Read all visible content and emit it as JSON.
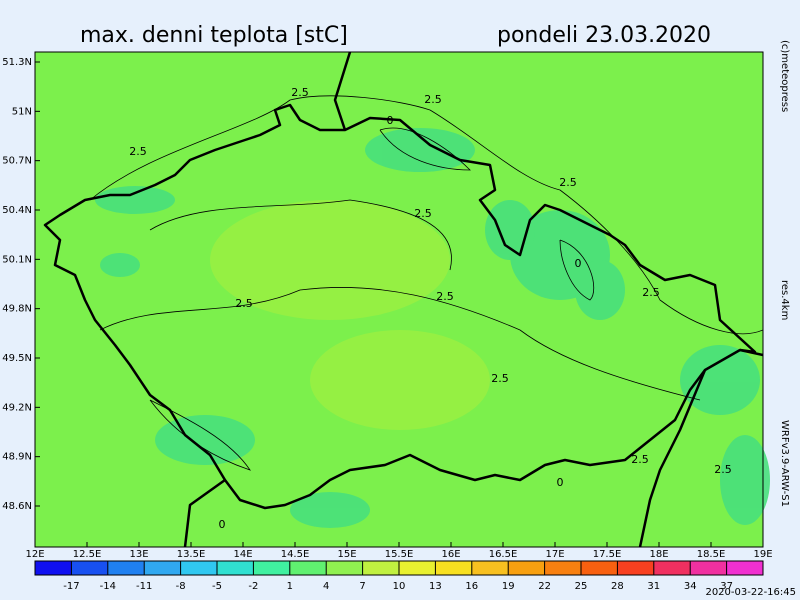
{
  "header": {
    "title": "max. denni teplota [stC]",
    "date": "pondeli 23.03.2020"
  },
  "side_notes": {
    "copyright": "(c)meteopress",
    "resolution": "res.4km",
    "model": "WRFv3.9-ARW-S1"
  },
  "timestamp": "2020-03-22-16:45",
  "map": {
    "lat_ticks": [
      {
        "value": 51.3,
        "label": "51.3N"
      },
      {
        "value": 51,
        "label": "51N"
      },
      {
        "value": 50.7,
        "label": "50.7N"
      },
      {
        "value": 50.4,
        "label": "50.4N"
      },
      {
        "value": 50.1,
        "label": "50.1N"
      },
      {
        "value": 49.8,
        "label": "49.8N"
      },
      {
        "value": 49.5,
        "label": "49.5N"
      },
      {
        "value": 49.2,
        "label": "49.2N"
      },
      {
        "value": 48.9,
        "label": "48.9N"
      },
      {
        "value": 48.6,
        "label": "48.6N"
      }
    ],
    "lon_ticks": [
      {
        "value": 12,
        "label": "12E"
      },
      {
        "value": 12.5,
        "label": "12.5E"
      },
      {
        "value": 13,
        "label": "13E"
      },
      {
        "value": 13.5,
        "label": "13.5E"
      },
      {
        "value": 14,
        "label": "14E"
      },
      {
        "value": 14.5,
        "label": "14.5E"
      },
      {
        "value": 15,
        "label": "15E"
      },
      {
        "value": 15.5,
        "label": "15.5E"
      },
      {
        "value": 16,
        "label": "16E"
      },
      {
        "value": 16.5,
        "label": "16.5E"
      },
      {
        "value": 17,
        "label": "17E"
      },
      {
        "value": 17.5,
        "label": "17.5E"
      },
      {
        "value": 18,
        "label": "18E"
      },
      {
        "value": 18.5,
        "label": "18.5E"
      },
      {
        "value": 19,
        "label": "19E"
      }
    ],
    "contour_labels": [
      "2.5",
      "2.5",
      "2.5",
      "2.5",
      "2.5",
      "2.5",
      "2.5",
      "2.5",
      "2.5",
      "2.5",
      "2.5",
      "0",
      "0",
      "0",
      "0"
    ]
  },
  "colorbar": {
    "lim": [
      -20,
      40
    ],
    "ticks": [
      -17,
      -14,
      -11,
      -8,
      -5,
      -2,
      1,
      4,
      7,
      10,
      13,
      16,
      19,
      22,
      25,
      28,
      31,
      34,
      37
    ],
    "colors": [
      "#1010f0",
      "#1850f0",
      "#2080f0",
      "#30a8f0",
      "#30c8f0",
      "#30e0d0",
      "#40f0a0",
      "#60f070",
      "#90f050",
      "#c0f040",
      "#e8f030",
      "#f8e020",
      "#f8c020",
      "#f8a010",
      "#f88010",
      "#f86010",
      "#f84020",
      "#f03060",
      "#f030a0",
      "#f030d0"
    ]
  }
}
